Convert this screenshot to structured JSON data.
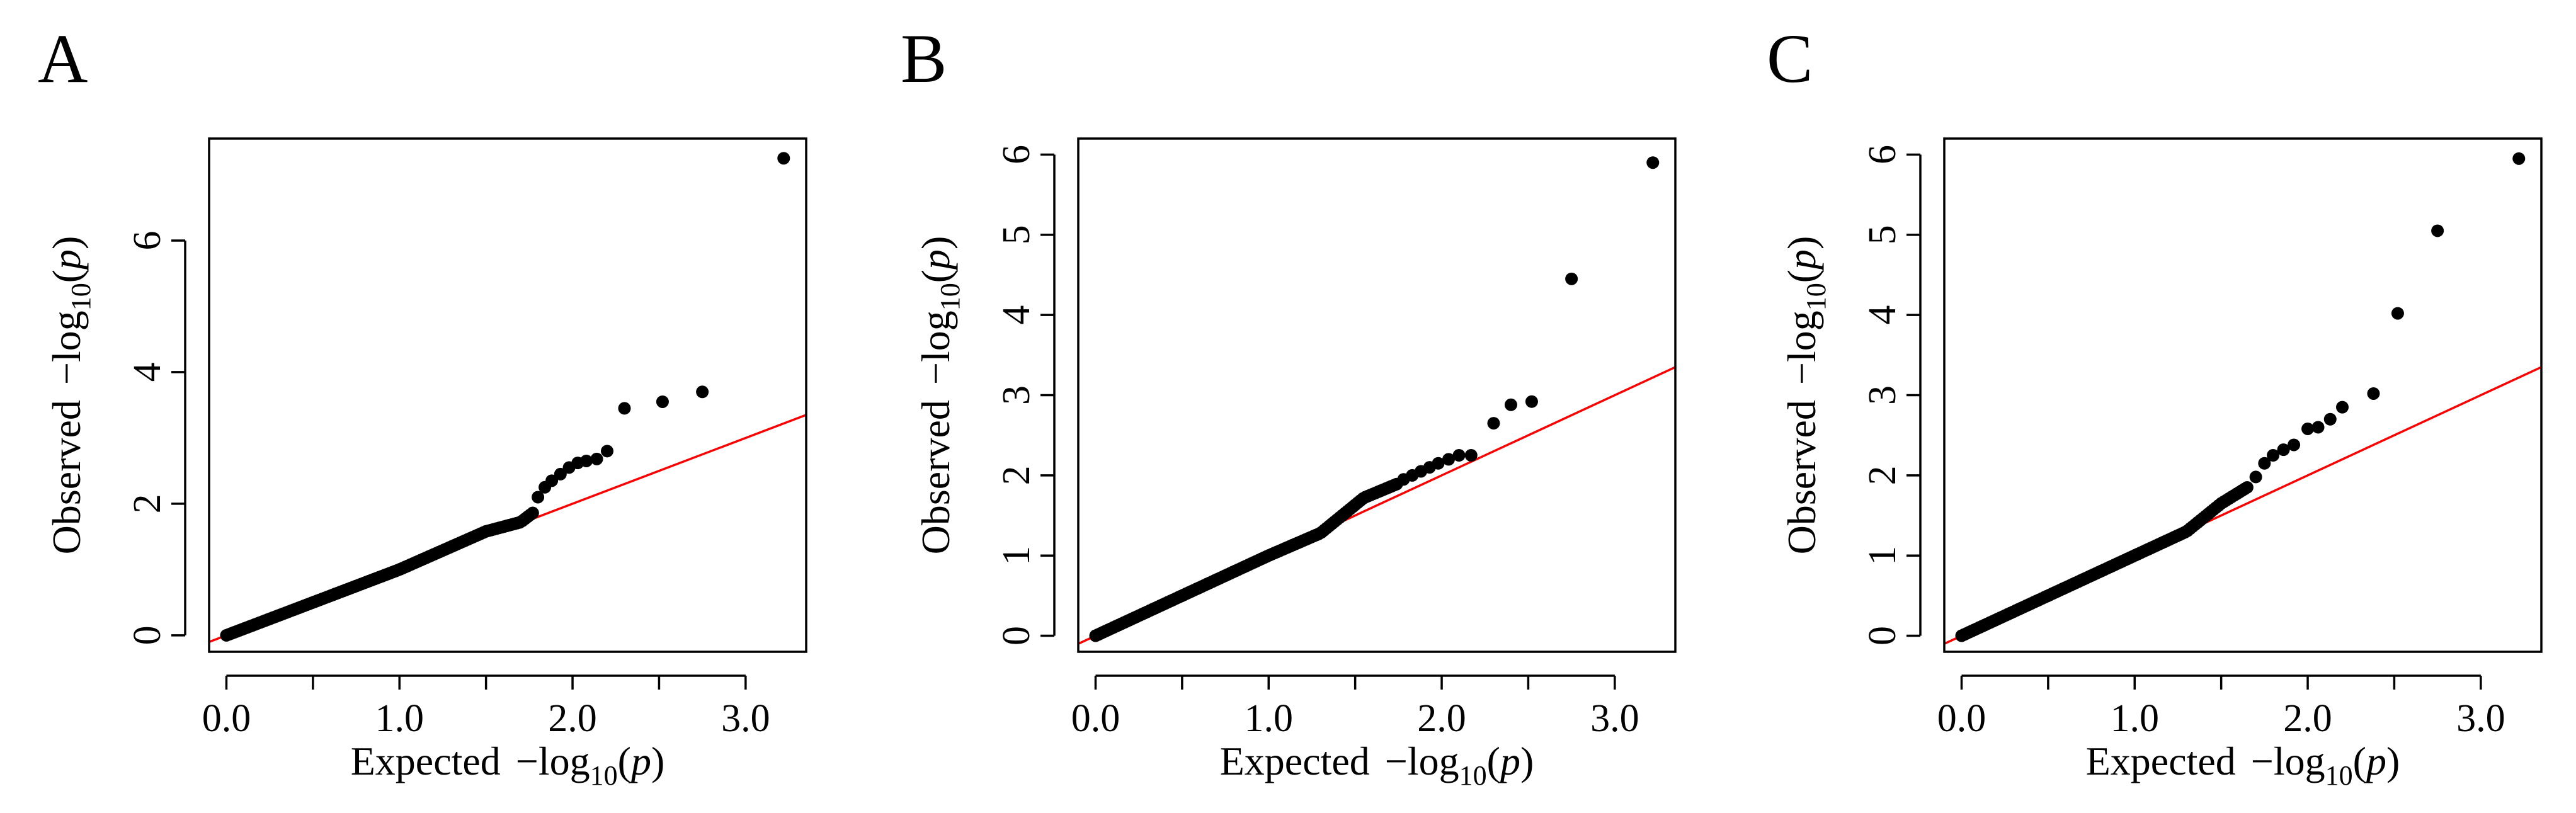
{
  "colors": {
    "points": "#000000",
    "reference_line": "#ff0000",
    "axes": "#000000",
    "background": "#ffffff"
  },
  "axis_text": {
    "x_word": "Expected",
    "y_word": "Observed",
    "minus_log": "−log",
    "log_base": "10",
    "p_open": "(",
    "p_var": "p",
    "p_close": ")"
  },
  "chart_data": [
    {
      "type": "scatter",
      "panel": "A",
      "title": "",
      "xlabel": "Expected −log10(p)",
      "ylabel": "Observed −log10(p)",
      "xlim": [
        -0.1,
        3.35
      ],
      "ylim": [
        -0.25,
        7.55
      ],
      "xticks": [
        0.0,
        0.5,
        1.0,
        1.5,
        2.0,
        2.5,
        3.0
      ],
      "xtick_labels": [
        "0.0",
        "",
        "1.0",
        "",
        "2.0",
        "",
        "3.0"
      ],
      "yticks": [
        0,
        2,
        4,
        6
      ],
      "ytick_labels": [
        "0",
        "2",
        "4",
        "6"
      ],
      "reference_line": {
        "slope": 1,
        "intercept": 0
      },
      "bulk_region": {
        "x_from": 0.0,
        "x_to": 1.78,
        "step": 0.015
      },
      "bulk_profile": [
        [
          0.0,
          0.0
        ],
        [
          0.5,
          0.5
        ],
        [
          1.0,
          1.0
        ],
        [
          1.5,
          1.58
        ],
        [
          1.7,
          1.72
        ],
        [
          1.78,
          1.88
        ]
      ],
      "upper_tail": [
        [
          1.8,
          2.1
        ],
        [
          1.84,
          2.25
        ],
        [
          1.88,
          2.35
        ],
        [
          1.93,
          2.45
        ],
        [
          1.98,
          2.55
        ],
        [
          2.03,
          2.62
        ],
        [
          2.08,
          2.65
        ],
        [
          2.14,
          2.68
        ],
        [
          2.2,
          2.8
        ],
        [
          2.3,
          3.45
        ],
        [
          2.52,
          3.55
        ],
        [
          2.75,
          3.7
        ],
        [
          3.22,
          7.25
        ]
      ]
    },
    {
      "type": "scatter",
      "panel": "B",
      "title": "",
      "xlabel": "Expected −log10(p)",
      "ylabel": "Observed −log10(p)",
      "xlim": [
        -0.1,
        3.35
      ],
      "ylim": [
        -0.2,
        6.2
      ],
      "xticks": [
        0.0,
        0.5,
        1.0,
        1.5,
        2.0,
        2.5,
        3.0
      ],
      "xtick_labels": [
        "0.0",
        "",
        "1.0",
        "",
        "2.0",
        "",
        "3.0"
      ],
      "yticks": [
        0,
        1,
        2,
        3,
        4,
        5,
        6
      ],
      "ytick_labels": [
        "0",
        "1",
        "2",
        "3",
        "4",
        "5",
        "6"
      ],
      "reference_line": {
        "slope": 1,
        "intercept": 0
      },
      "bulk_region": {
        "x_from": 0.0,
        "x_to": 1.75,
        "step": 0.015
      },
      "bulk_profile": [
        [
          0.0,
          0.0
        ],
        [
          0.5,
          0.5
        ],
        [
          1.0,
          1.0
        ],
        [
          1.3,
          1.28
        ],
        [
          1.55,
          1.72
        ],
        [
          1.75,
          1.9
        ]
      ],
      "upper_tail": [
        [
          1.78,
          1.95
        ],
        [
          1.83,
          2.0
        ],
        [
          1.88,
          2.05
        ],
        [
          1.93,
          2.1
        ],
        [
          1.98,
          2.15
        ],
        [
          2.04,
          2.2
        ],
        [
          2.1,
          2.25
        ],
        [
          2.17,
          2.25
        ],
        [
          2.3,
          2.65
        ],
        [
          2.4,
          2.88
        ],
        [
          2.52,
          2.92
        ],
        [
          2.75,
          4.45
        ],
        [
          3.22,
          5.9
        ]
      ]
    },
    {
      "type": "scatter",
      "panel": "C",
      "title": "",
      "xlabel": "Expected −log10(p)",
      "ylabel": "Observed −log10(p)",
      "xlim": [
        -0.1,
        3.35
      ],
      "ylim": [
        -0.2,
        6.2
      ],
      "xticks": [
        0.0,
        0.5,
        1.0,
        1.5,
        2.0,
        2.5,
        3.0
      ],
      "xtick_labels": [
        "0.0",
        "",
        "1.0",
        "",
        "2.0",
        "",
        "3.0"
      ],
      "yticks": [
        0,
        1,
        2,
        3,
        4,
        5,
        6
      ],
      "ytick_labels": [
        "0",
        "1",
        "2",
        "3",
        "4",
        "5",
        "6"
      ],
      "reference_line": {
        "slope": 1,
        "intercept": 0
      },
      "bulk_region": {
        "x_from": 0.0,
        "x_to": 1.65,
        "step": 0.015
      },
      "bulk_profile": [
        [
          0.0,
          0.0
        ],
        [
          0.5,
          0.5
        ],
        [
          1.0,
          1.0
        ],
        [
          1.3,
          1.3
        ],
        [
          1.5,
          1.65
        ],
        [
          1.65,
          1.85
        ]
      ],
      "upper_tail": [
        [
          1.7,
          1.98
        ],
        [
          1.75,
          2.15
        ],
        [
          1.8,
          2.25
        ],
        [
          1.86,
          2.32
        ],
        [
          1.92,
          2.38
        ],
        [
          2.0,
          2.58
        ],
        [
          2.06,
          2.6
        ],
        [
          2.13,
          2.7
        ],
        [
          2.2,
          2.85
        ],
        [
          2.38,
          3.02
        ],
        [
          2.52,
          4.02
        ],
        [
          2.75,
          5.05
        ],
        [
          3.22,
          5.95
        ]
      ]
    }
  ]
}
